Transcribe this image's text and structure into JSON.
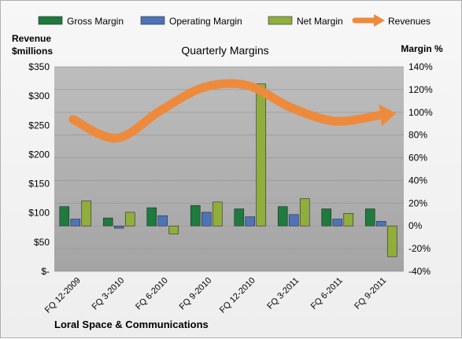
{
  "chart_data": {
    "type": "bar",
    "title": "Quarterly Margins",
    "company": "Loral Space & Communications",
    "left_axis_label": [
      "Revenue",
      "$millions"
    ],
    "right_axis_label": "Margin %",
    "left_ticks": [
      "$-",
      "$50",
      "$100",
      "$150",
      "$200",
      "$250",
      "$300",
      "$350"
    ],
    "right_ticks": [
      "-40%",
      "-20%",
      "0%",
      "20%",
      "40%",
      "60%",
      "80%",
      "100%",
      "120%",
      "140%"
    ],
    "ylim_left": [
      0,
      350
    ],
    "ylim_right": [
      -40,
      140
    ],
    "categories": [
      "FQ 12-2009",
      "FQ 3-2010",
      "FQ 6-2010",
      "FQ 9-2010",
      "FQ 12-2010",
      "FQ 3-2011",
      "FQ 6-2011",
      "FQ 9-2011"
    ],
    "series": [
      {
        "name": "Gross Margin",
        "axis": "right",
        "color": "#1e7a3e",
        "values": [
          17,
          7,
          16,
          18,
          15,
          17,
          15,
          15
        ]
      },
      {
        "name": "Operating Margin",
        "axis": "right",
        "color": "#4f73b8",
        "values": [
          6,
          -2,
          9,
          12,
          8,
          10,
          6,
          4
        ]
      },
      {
        "name": "Net Margin",
        "axis": "right",
        "color": "#8fae3c",
        "values": [
          22,
          12,
          -7,
          21,
          125,
          24,
          11,
          -27
        ]
      },
      {
        "name": "Revenues",
        "axis": "left",
        "type": "line",
        "color": "#ee8a3c",
        "values": [
          260,
          228,
          275,
          315,
          318,
          280,
          257,
          267
        ]
      }
    ],
    "grid": true,
    "legend_position": "top"
  }
}
